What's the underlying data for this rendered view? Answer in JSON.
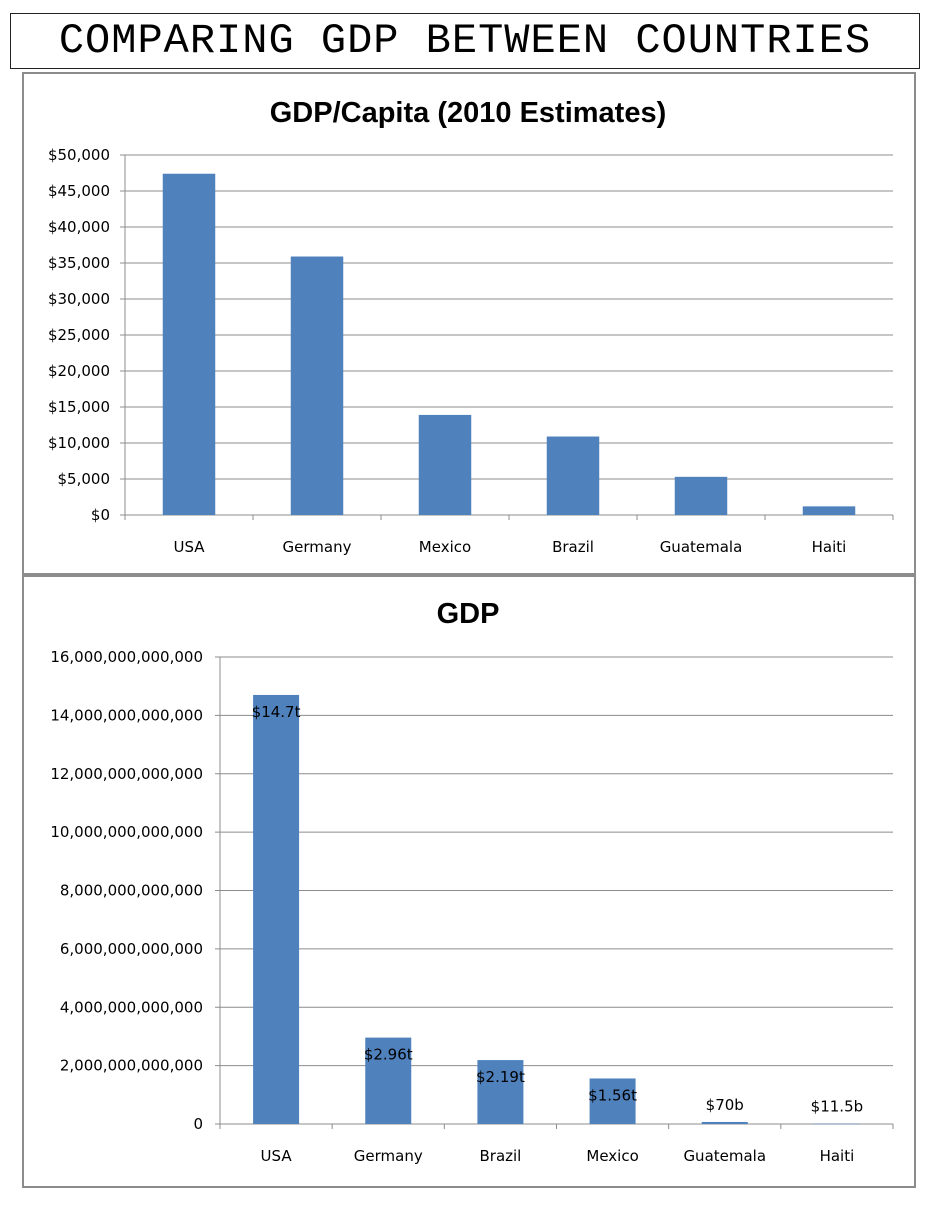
{
  "page": {
    "title": "COMPARING GDP BETWEEN COUNTRIES"
  },
  "colors": {
    "bar": "#4f81bd",
    "grid": "#8c8c8c",
    "frame": "#8c8c8c"
  },
  "chart_data": [
    {
      "type": "bar",
      "title": "GDP/Capita (2010 Estimates)",
      "xlabel": "",
      "ylabel": "",
      "categories": [
        "USA",
        "Germany",
        "Mexico",
        "Brazil",
        "Guatemala",
        "Haiti"
      ],
      "values": [
        47400,
        35900,
        13900,
        10900,
        5300,
        1200
      ],
      "ylim": [
        0,
        50000
      ],
      "yticks": [
        0,
        5000,
        10000,
        15000,
        20000,
        25000,
        30000,
        35000,
        40000,
        45000,
        50000
      ],
      "ytick_labels": [
        "$0",
        "$5,000",
        "$10,000",
        "$15,000",
        "$20,000",
        "$25,000",
        "$30,000",
        "$35,000",
        "$40,000",
        "$45,000",
        "$50,000"
      ],
      "grid": true,
      "legend": "none"
    },
    {
      "type": "bar",
      "title": "GDP",
      "xlabel": "",
      "ylabel": "",
      "categories": [
        "USA",
        "Germany",
        "Brazil",
        "Mexico",
        "Guatemala",
        "Haiti"
      ],
      "values": [
        14700000000000,
        2960000000000,
        2190000000000,
        1560000000000,
        70000000000,
        11500000000
      ],
      "data_labels": [
        "$14.7t",
        "$2.96t",
        "$2.19t",
        "$1.56t",
        "$70b",
        "$11.5b"
      ],
      "ylim": [
        0,
        16000000000000
      ],
      "yticks": [
        0,
        2000000000000,
        4000000000000,
        6000000000000,
        8000000000000,
        10000000000000,
        12000000000000,
        14000000000000,
        16000000000000
      ],
      "ytick_labels": [
        "0",
        "2,000,000,000,000",
        "4,000,000,000,000",
        "6,000,000,000,000",
        "8,000,000,000,000",
        "10,000,000,000,000",
        "12,000,000,000,000",
        "14,000,000,000,000",
        "16,000,000,000,000"
      ],
      "grid": true,
      "legend": "none"
    }
  ]
}
